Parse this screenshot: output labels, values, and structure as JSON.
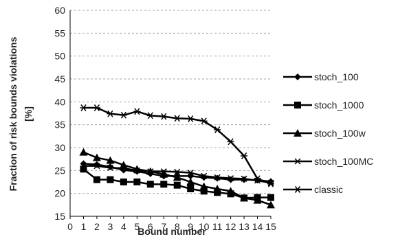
{
  "colors": {
    "series": "#000000",
    "grid": "#a6a6a6",
    "axis": "#000000",
    "text": "#222222"
  },
  "chart_data": {
    "type": "line",
    "xlabel": "Bound number",
    "ylabel_lines": [
      "Fraction of risk bounds violations",
      "[%]"
    ],
    "xlim": [
      0,
      15
    ],
    "ylim": [
      15,
      60
    ],
    "xticks": [
      "0",
      "1",
      "2",
      "3",
      "4",
      "5",
      "6",
      "7",
      "8",
      "9",
      "10",
      "11",
      "12",
      "13",
      "14",
      "15"
    ],
    "yticks": [
      "15",
      "20",
      "25",
      "30",
      "35",
      "40",
      "45",
      "50",
      "55",
      "60"
    ],
    "grid": "horizontal dashed",
    "legend_position": "right",
    "x": [
      1,
      2,
      3,
      4,
      5,
      6,
      7,
      8,
      9,
      10,
      11,
      12,
      13,
      14,
      15
    ],
    "series": [
      {
        "name": "stoch_100",
        "marker": "diamond",
        "values": [
          26.5,
          26.3,
          25.8,
          25.1,
          24.8,
          24.3,
          23.8,
          23.8,
          23.8,
          23.5,
          23.3,
          23.0,
          23.0,
          22.9,
          22.6
        ]
      },
      {
        "name": "stoch_1000",
        "marker": "square",
        "values": [
          25.3,
          23.0,
          23.0,
          22.5,
          22.5,
          22.0,
          22.0,
          21.8,
          21.0,
          20.5,
          20.2,
          19.9,
          19.0,
          19.1,
          19.1
        ]
      },
      {
        "name": "stoch_100w",
        "marker": "triangle",
        "values": [
          29.0,
          27.8,
          27.2,
          26.2,
          25.3,
          24.8,
          24.2,
          23.5,
          22.5,
          21.5,
          21.0,
          20.5,
          19.0,
          18.5,
          17.5
        ]
      },
      {
        "name": "stoch_100MC",
        "marker": "x",
        "values": [
          26.0,
          26.0,
          25.6,
          25.5,
          25.0,
          24.8,
          24.8,
          24.7,
          24.5,
          23.8,
          23.5,
          23.3,
          23.2,
          22.8,
          22.3
        ]
      },
      {
        "name": "classic",
        "marker": "asterisk",
        "values": [
          38.7,
          38.7,
          37.4,
          37.1,
          37.9,
          37.0,
          36.8,
          36.4,
          36.3,
          35.8,
          33.9,
          31.3,
          28.2,
          23.2,
          22.1
        ]
      }
    ]
  }
}
